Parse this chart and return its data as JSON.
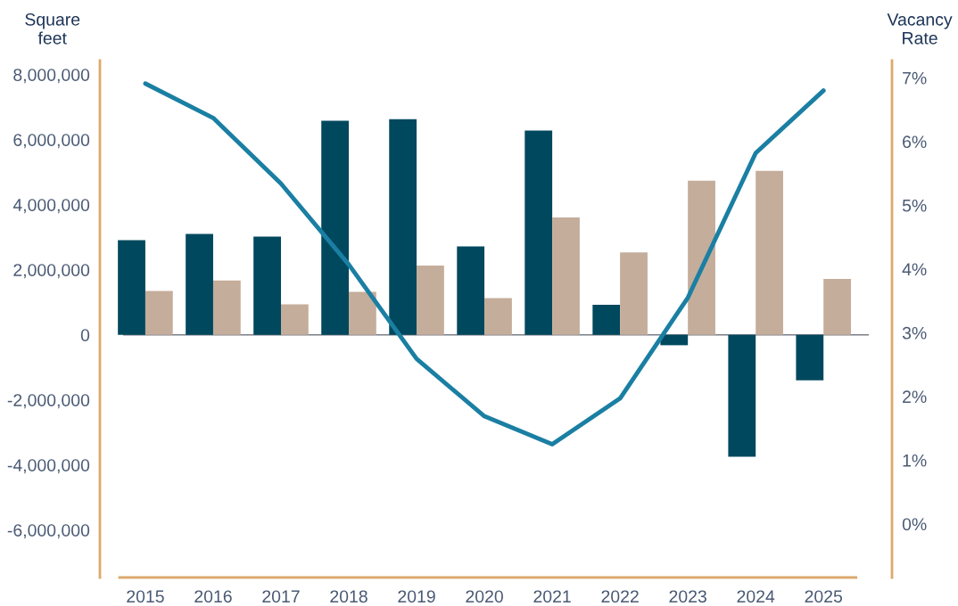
{
  "chart_data": {
    "type": "bar",
    "ylabel": "Square\nfeet",
    "y2label": "Vacancy\nRate",
    "categories": [
      "2015",
      "2016",
      "2017",
      "2018",
      "2019",
      "2020",
      "2021",
      "2022",
      "2023",
      "2024",
      "2025"
    ],
    "series": [
      {
        "color": "#00485e",
        "values": [
          2910000,
          3100000,
          3020000,
          6580000,
          6630000,
          2720000,
          6280000,
          920000,
          -320000,
          -3750000,
          -1400000
        ]
      },
      {
        "color": "#c4ad9b",
        "values": [
          1350000,
          1670000,
          940000,
          1320000,
          2130000,
          1130000,
          3610000,
          2530000,
          4740000,
          5040000,
          1720000
        ]
      },
      {
        "type": "line",
        "axis": "y2",
        "color": "#1a7fa3",
        "values": [
          6.91,
          6.37,
          5.34,
          4.07,
          2.59,
          1.69,
          1.25,
          1.97,
          3.55,
          5.82,
          6.8
        ]
      }
    ],
    "ylim": [
      -7460000,
      8430000
    ],
    "yticks": [
      {
        "value": -6000000,
        "label": "-6,000,000"
      },
      {
        "value": -4000000,
        "label": "-4,000,000"
      },
      {
        "value": -2000000,
        "label": "-2,000,000"
      },
      0,
      {
        "value": 2000000,
        "label": "2,000,000"
      },
      {
        "value": 4000000,
        "label": "4,000,000"
      },
      {
        "value": 6000000,
        "label": "6,000,000"
      },
      {
        "value": 8000000,
        "label": "8,000,000"
      }
    ],
    "y2lim": [
      -0.84,
      7.27
    ],
    "y2ticks": [
      {
        "value": 0,
        "label": "0%"
      },
      {
        "value": 1,
        "label": "1%"
      },
      {
        "value": 2,
        "label": "2%"
      },
      {
        "value": 3,
        "label": "3%"
      },
      {
        "value": 4,
        "label": "4%"
      },
      {
        "value": 5,
        "label": "5%"
      },
      {
        "value": 6,
        "label": "6%"
      },
      {
        "value": 7,
        "label": "7%"
      }
    ],
    "ref_lines": [
      {
        "axis": "y",
        "value": 0,
        "color": "#7a7f88"
      }
    ],
    "legend": false
  }
}
